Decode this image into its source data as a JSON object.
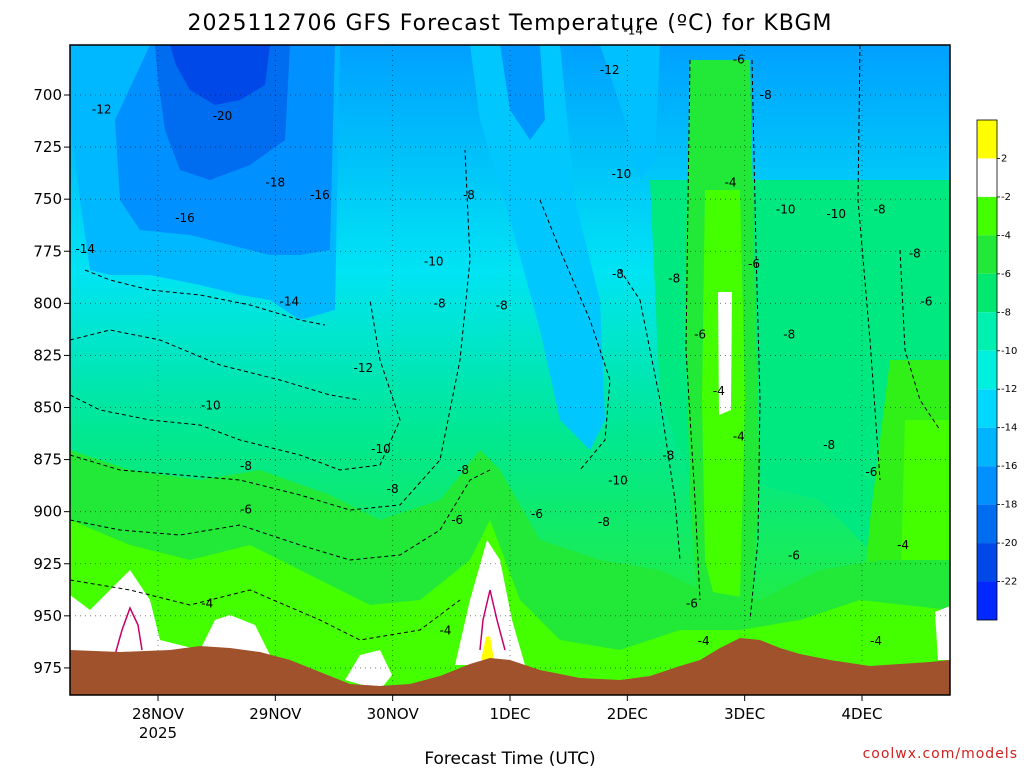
{
  "chart_data": {
    "type": "heatmap",
    "title": "2025112706 GFS Forecast Temperature (ºC) for KBGM",
    "xlabel": "Forecast Time (UTC)",
    "ylabel": "",
    "watermark": "coolwx.com/models",
    "y_axis": {
      "inverted": true,
      "range": [
        676,
        988
      ],
      "ticks": [
        "700",
        "725",
        "750",
        "775",
        "800",
        "825",
        "850",
        "875",
        "900",
        "925",
        "950",
        "975"
      ]
    },
    "x_axis": {
      "range_days": [
        27.25,
        34.75
      ],
      "ticks": [
        {
          "day": 28,
          "label": "28NOV",
          "sublabel": "2025"
        },
        {
          "day": 29,
          "label": "29NOV",
          "sublabel": ""
        },
        {
          "day": 30,
          "label": "30NOV",
          "sublabel": ""
        },
        {
          "day": 31,
          "label": "1DEC",
          "sublabel": ""
        },
        {
          "day": 32,
          "label": "2DEC",
          "sublabel": ""
        },
        {
          "day": 33,
          "label": "3DEC",
          "sublabel": ""
        },
        {
          "day": 34,
          "label": "4DEC",
          "sublabel": ""
        }
      ]
    },
    "colorbar": {
      "labels": [
        "2",
        "-2",
        "-4",
        "-6",
        "-8",
        "-10",
        "-12",
        "-14",
        "-16",
        "-18",
        "-20",
        "-22"
      ],
      "colors": [
        "#ffff00",
        "#ffffff",
        "#44ff00",
        "#22e838",
        "#00e870",
        "#00f0b0",
        "#00f0e0",
        "#00d8ff",
        "#00b4ff",
        "#0090ff",
        "#006cf0",
        "#0048e8",
        "#0028ff"
      ]
    },
    "contour_labels": [
      {
        "day": 27.52,
        "p": 707,
        "v": "-12"
      },
      {
        "day": 28.55,
        "p": 710,
        "v": "-20"
      },
      {
        "day": 29.0,
        "p": 742,
        "v": "-18"
      },
      {
        "day": 29.38,
        "p": 748,
        "v": "-16"
      },
      {
        "day": 28.23,
        "p": 759,
        "v": "-16"
      },
      {
        "day": 27.38,
        "p": 774,
        "v": "-14"
      },
      {
        "day": 29.12,
        "p": 799,
        "v": "-14"
      },
      {
        "day": 29.75,
        "p": 831,
        "v": "-12"
      },
      {
        "day": 28.45,
        "p": 849,
        "v": "-10"
      },
      {
        "day": 29.9,
        "p": 870,
        "v": "-10"
      },
      {
        "day": 28.75,
        "p": 878,
        "v": "-8"
      },
      {
        "day": 28.75,
        "p": 899,
        "v": "-6"
      },
      {
        "day": 28.42,
        "p": 944,
        "v": "-4"
      },
      {
        "day": 30.35,
        "p": 780,
        "v": "-10"
      },
      {
        "day": 30.4,
        "p": 800,
        "v": "-8"
      },
      {
        "day": 30.65,
        "p": 748,
        "v": "-8"
      },
      {
        "day": 30.93,
        "p": 801,
        "v": "-8"
      },
      {
        "day": 30.0,
        "p": 889,
        "v": "-8"
      },
      {
        "day": 30.6,
        "p": 880,
        "v": "-8"
      },
      {
        "day": 30.55,
        "p": 904,
        "v": "-6"
      },
      {
        "day": 31.23,
        "p": 901,
        "v": "-6"
      },
      {
        "day": 30.45,
        "p": 957,
        "v": "-4"
      },
      {
        "day": 31.92,
        "p": 786,
        "v": "-8"
      },
      {
        "day": 32.4,
        "p": 788,
        "v": "-8"
      },
      {
        "day": 31.95,
        "p": 738,
        "v": "-10"
      },
      {
        "day": 31.92,
        "p": 885,
        "v": "-10"
      },
      {
        "day": 31.8,
        "p": 905,
        "v": "-8"
      },
      {
        "day": 32.35,
        "p": 873,
        "v": "-8"
      },
      {
        "day": 31.85,
        "p": 688,
        "v": "-12"
      },
      {
        "day": 32.05,
        "p": 669,
        "v": "-14"
      },
      {
        "day": 32.95,
        "p": 683,
        "v": "-6"
      },
      {
        "day": 33.18,
        "p": 700,
        "v": "-8"
      },
      {
        "day": 32.88,
        "p": 742,
        "v": "-4"
      },
      {
        "day": 33.35,
        "p": 755,
        "v": "-10"
      },
      {
        "day": 33.78,
        "p": 757,
        "v": "-10"
      },
      {
        "day": 34.15,
        "p": 755,
        "v": "-8"
      },
      {
        "day": 33.08,
        "p": 781,
        "v": "-6"
      },
      {
        "day": 32.62,
        "p": 815,
        "v": "-6"
      },
      {
        "day": 33.38,
        "p": 815,
        "v": "-8"
      },
      {
        "day": 32.78,
        "p": 842,
        "v": "-4"
      },
      {
        "day": 32.95,
        "p": 864,
        "v": "-4"
      },
      {
        "day": 33.72,
        "p": 868,
        "v": "-8"
      },
      {
        "day": 34.08,
        "p": 881,
        "v": "-6"
      },
      {
        "day": 34.45,
        "p": 776,
        "v": "-8"
      },
      {
        "day": 34.55,
        "p": 799,
        "v": "-6"
      },
      {
        "day": 33.42,
        "p": 921,
        "v": "-6"
      },
      {
        "day": 34.35,
        "p": 916,
        "v": "-4"
      },
      {
        "day": 32.55,
        "p": 944,
        "v": "-6"
      },
      {
        "day": 32.65,
        "p": 962,
        "v": "-4"
      },
      {
        "day": 34.12,
        "p": 962,
        "v": "-4"
      }
    ]
  }
}
